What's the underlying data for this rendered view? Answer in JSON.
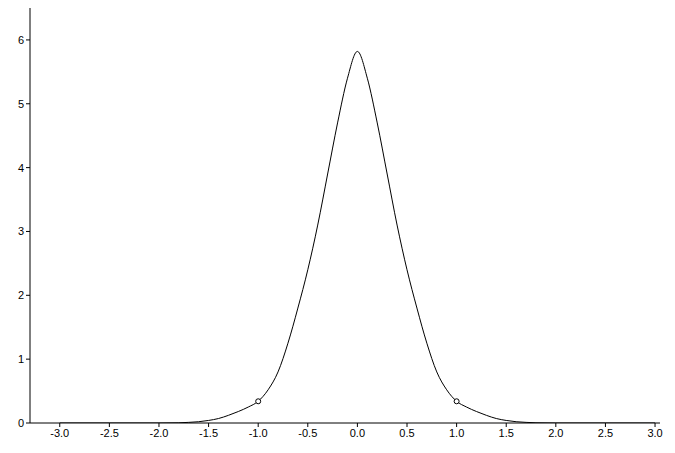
{
  "chart_data": {
    "type": "line",
    "xlim": [
      -3.3,
      3.05
    ],
    "xticks": [
      {
        "value": -3,
        "label": "-3.0"
      },
      {
        "value": -2.5,
        "label": "-2.5"
      },
      {
        "value": -2,
        "label": "-2.0"
      },
      {
        "value": -1.5,
        "label": "-1.5"
      },
      {
        "value": -1,
        "label": "-1.0"
      },
      {
        "value": -0.5,
        "label": "-0.5"
      },
      {
        "value": 0,
        "label": "0.0"
      },
      {
        "value": 0.5,
        "label": "0.5"
      },
      {
        "value": 1,
        "label": "1.0"
      },
      {
        "value": 1.5,
        "label": "1.5"
      },
      {
        "value": 2,
        "label": "2.0"
      },
      {
        "value": 2.5,
        "label": "2.5"
      },
      {
        "value": 3,
        "label": "3.0"
      }
    ],
    "ylim": [
      0,
      6.5
    ],
    "yticks": [
      0,
      1,
      2,
      3,
      4,
      5,
      6
    ],
    "grid": false,
    "series": [
      {
        "type": "line",
        "color": "#000000",
        "x": [
          -3.0,
          -2.5,
          -2.0,
          -1.8,
          -1.7,
          -1.6,
          -1.5,
          -1.4,
          -1.3,
          -1.2,
          -1.1,
          -1.0,
          -0.9,
          -0.8,
          -0.7,
          -0.6,
          -0.5,
          -0.4,
          -0.3,
          -0.2,
          -0.1,
          0.0,
          0.1,
          0.2,
          0.3,
          0.4,
          0.5,
          0.6,
          0.7,
          0.8,
          0.9,
          1.0,
          1.1,
          1.2,
          1.3,
          1.4,
          1.5,
          1.6,
          1.7,
          1.8,
          2.0,
          2.5,
          3.0
        ],
        "values": [
          0,
          0,
          0,
          0.003,
          0.01,
          0.02,
          0.04,
          0.07,
          0.12,
          0.18,
          0.25,
          0.34,
          0.52,
          0.8,
          1.25,
          1.8,
          2.4,
          3.1,
          3.9,
          4.7,
          5.4,
          5.82,
          5.4,
          4.7,
          3.9,
          3.1,
          2.4,
          1.8,
          1.25,
          0.8,
          0.52,
          0.34,
          0.25,
          0.18,
          0.12,
          0.07,
          0.04,
          0.02,
          0.01,
          0.003,
          0,
          0,
          0
        ]
      },
      {
        "type": "scatter",
        "color": "#000000",
        "marker": "circle",
        "x": [
          -1.0,
          1.0
        ],
        "values": [
          0.34,
          0.34
        ]
      }
    ]
  }
}
